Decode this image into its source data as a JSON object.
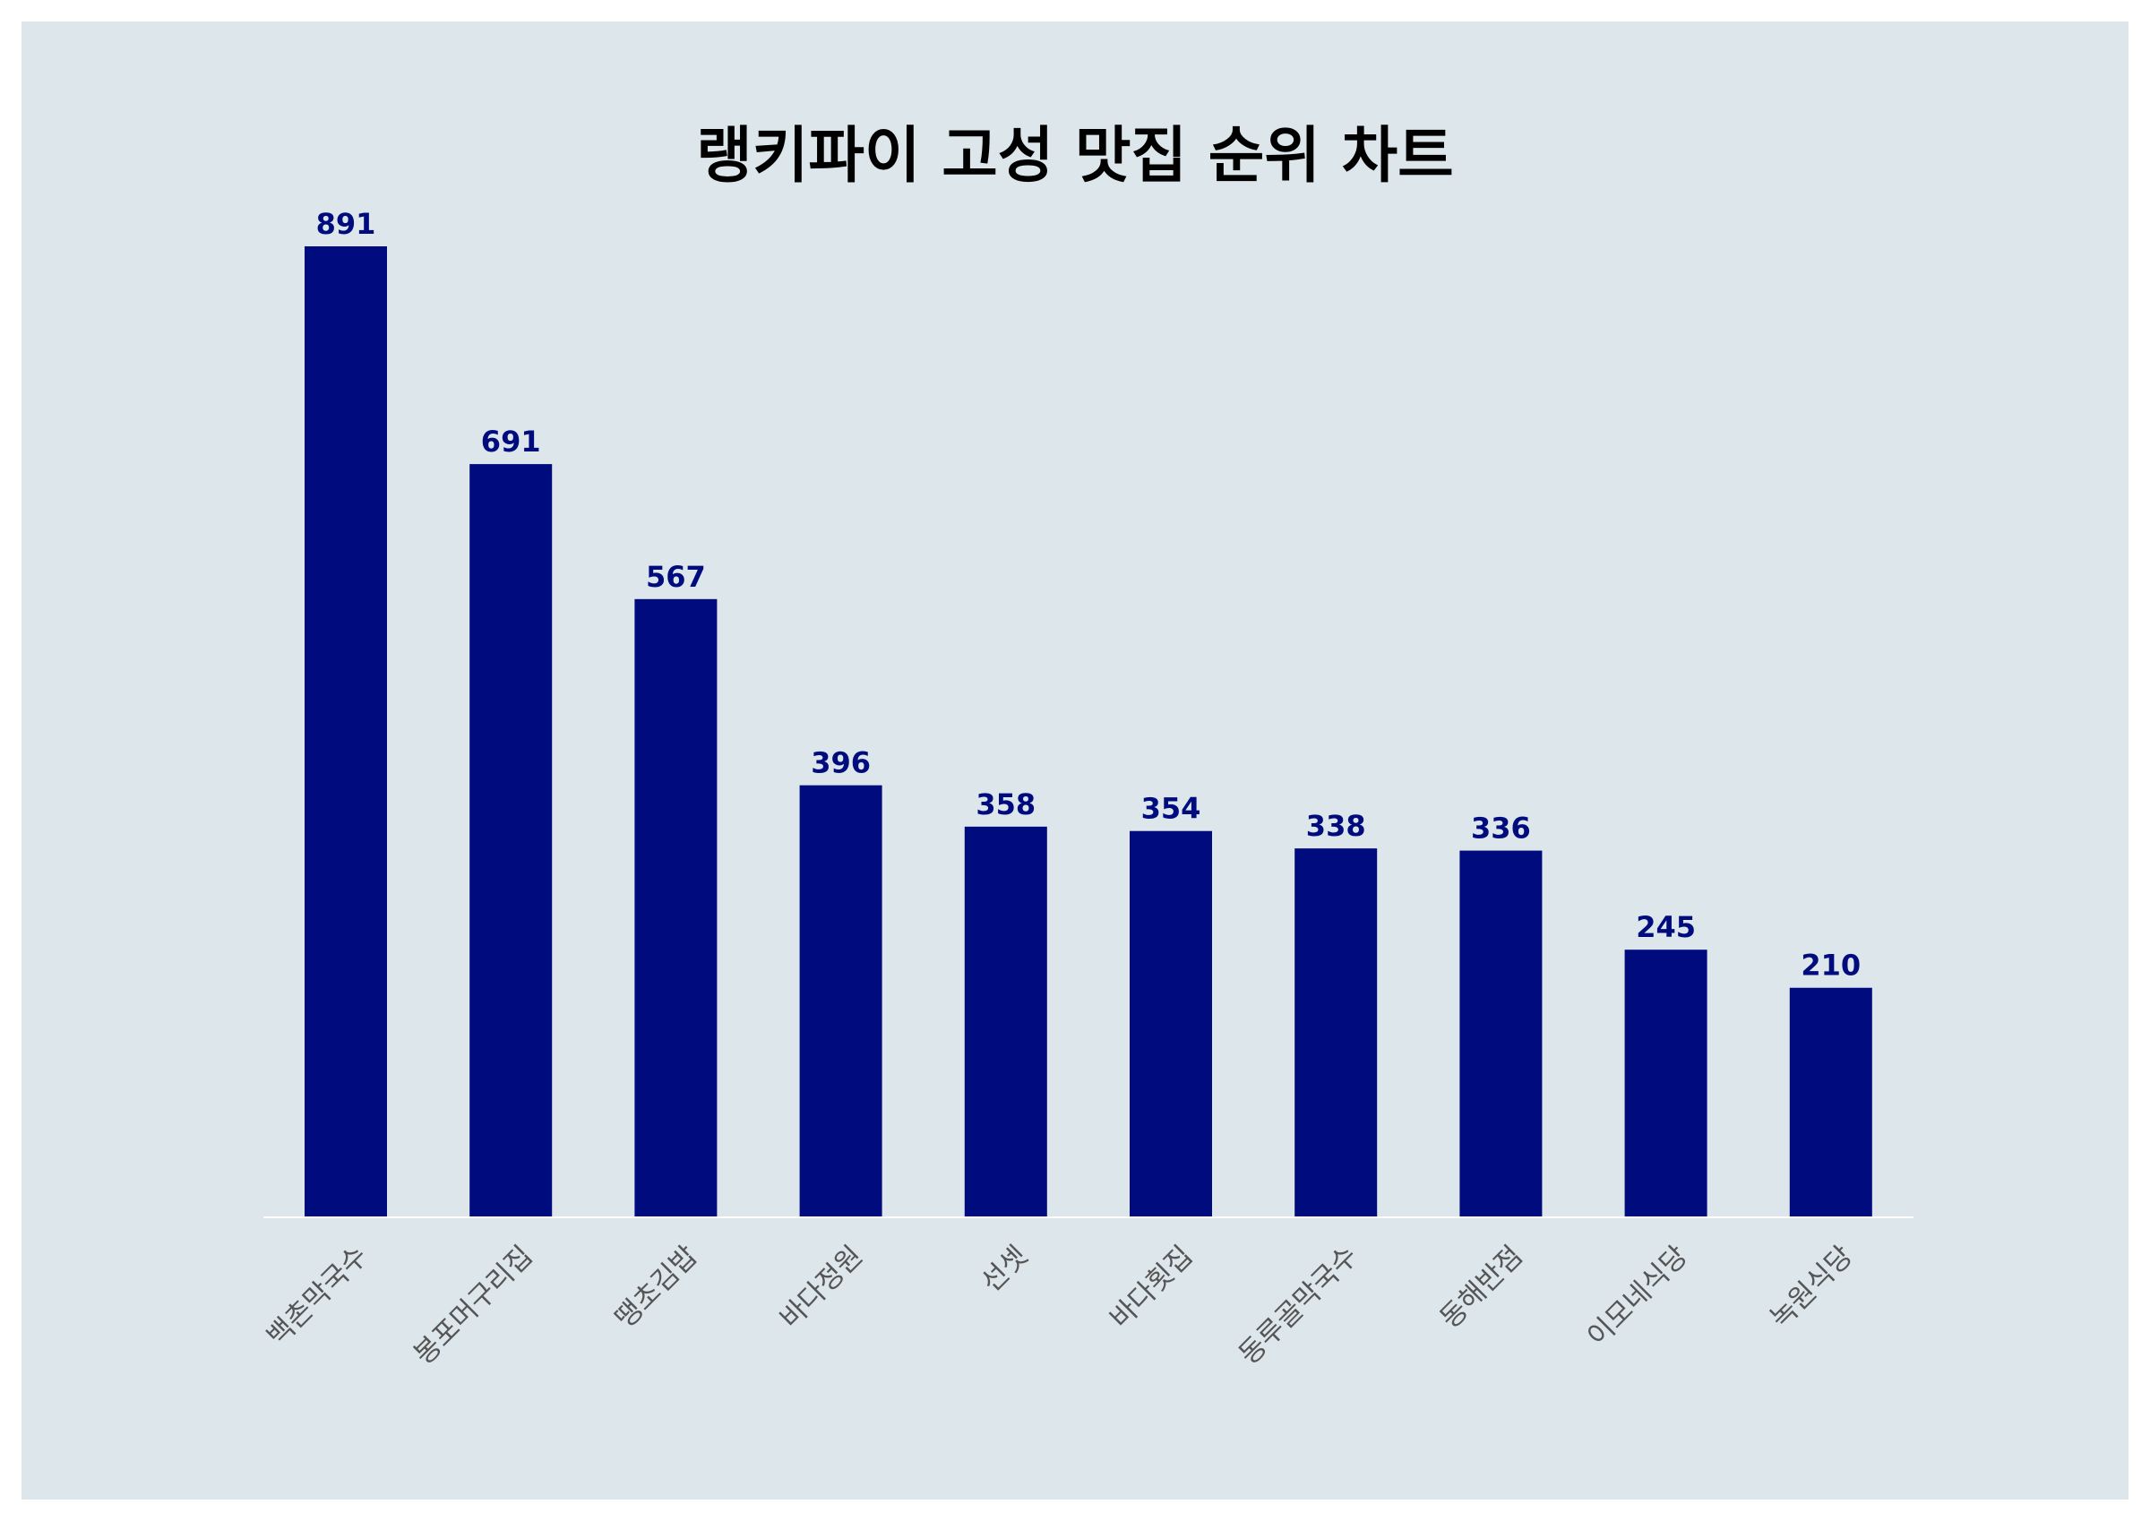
{
  "chart_data": {
    "type": "bar",
    "title": "랭키파이 고성 맛집 순위 차트",
    "xlabel": "",
    "ylabel": "",
    "categories": [
      "백촌막국수",
      "봉포머구리집",
      "땡초김밥",
      "바다정원",
      "선셋",
      "바다횟집",
      "동루골막국수",
      "동해반점",
      "이모네식당",
      "녹원식당"
    ],
    "values": [
      891,
      691,
      567,
      396,
      358,
      354,
      338,
      336,
      245,
      210
    ],
    "ylim": [
      0,
      891
    ],
    "grid": false,
    "legend": "none",
    "data_labels": true
  },
  "colors": {
    "bar": "#000c7e",
    "value_label": "#000c7e",
    "category_label": "#555555",
    "axis_line": "#ffffff",
    "background": "#dce6eb"
  }
}
